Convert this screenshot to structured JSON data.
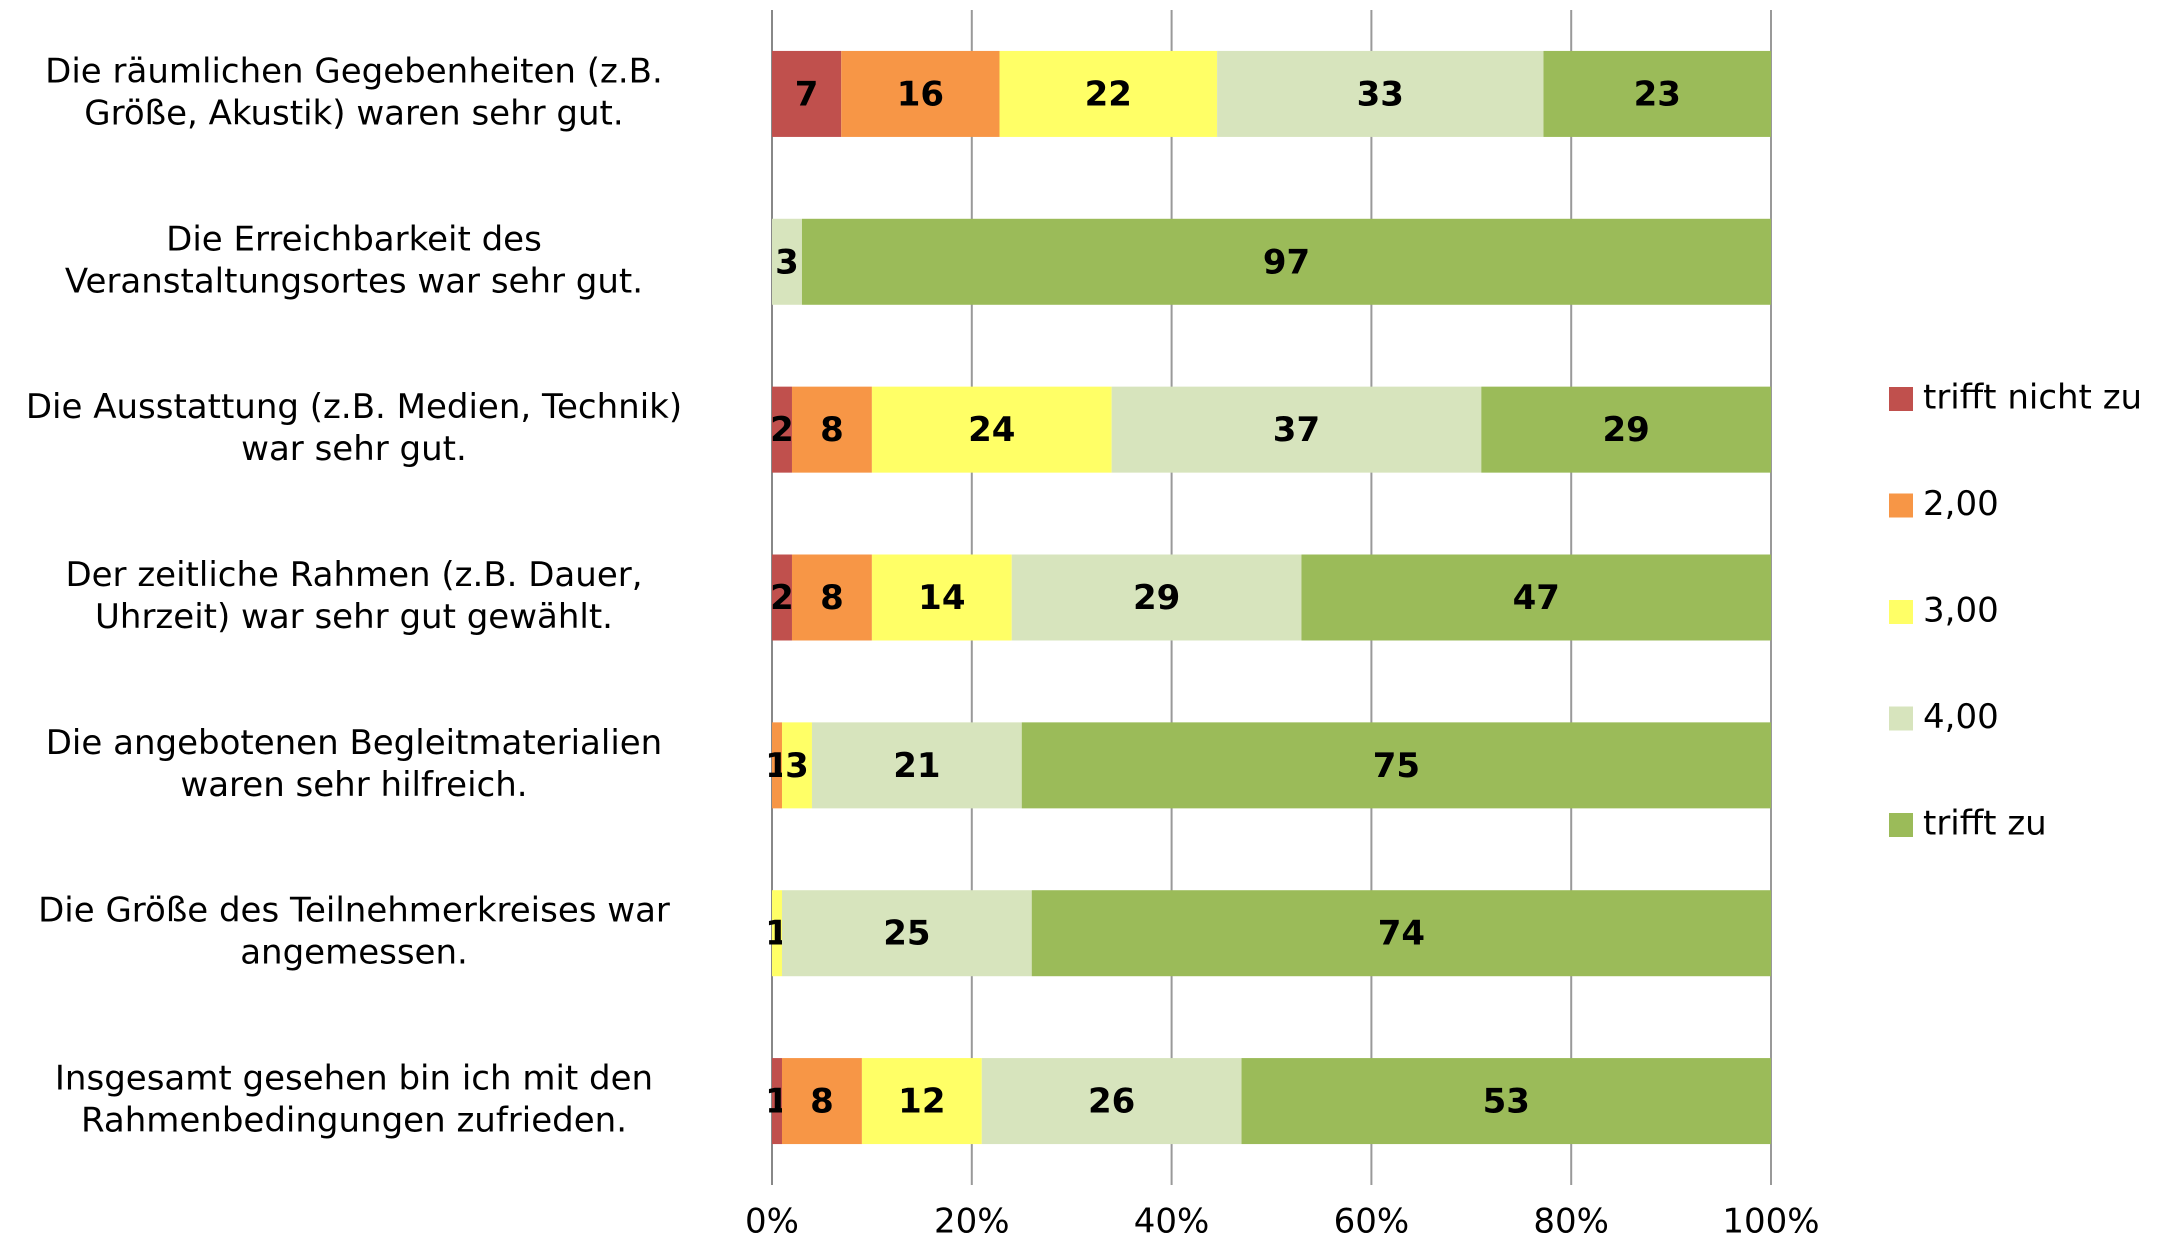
{
  "chart_data": {
    "type": "bar",
    "orientation": "horizontal",
    "stacking": "percent",
    "categories": [
      [
        "Die räumlichen Gegebenheiten (z.B.",
        "Größe, Akustik) waren sehr gut."
      ],
      [
        "Die Erreichbarkeit des",
        "Veranstaltungsortes war sehr gut."
      ],
      [
        "Die Ausstattung (z.B. Medien, Technik)",
        "war sehr gut."
      ],
      [
        "Der zeitliche Rahmen (z.B. Dauer,",
        "Uhrzeit) war sehr gut gewählt."
      ],
      [
        "Die angebotenen Begleitmaterialien",
        "waren sehr hilfreich."
      ],
      [
        "Die Größe des Teilnehmerkreises war",
        "angemessen."
      ],
      [
        "Insgesamt gesehen bin ich mit den",
        "Rahmenbedingungen zufrieden."
      ]
    ],
    "series": [
      {
        "name": "trifft nicht zu",
        "color": "#c0504d",
        "values": [
          7,
          null,
          2,
          2,
          null,
          null,
          1
        ]
      },
      {
        "name": "2,00",
        "color": "#f79646",
        "values": [
          16,
          null,
          8,
          8,
          1,
          null,
          8
        ]
      },
      {
        "name": "3,00",
        "color": "#ffff66",
        "values": [
          22,
          null,
          24,
          14,
          3,
          1,
          12
        ]
      },
      {
        "name": "4,00",
        "color": "#d7e4bd",
        "values": [
          33,
          3,
          37,
          29,
          21,
          25,
          26
        ]
      },
      {
        "name": "trifft zu",
        "color": "#9bbb59",
        "values": [
          23,
          97,
          29,
          47,
          75,
          74,
          53
        ]
      }
    ],
    "xlim": [
      0,
      100
    ],
    "xticks": [
      {
        "value": 0,
        "label": "0%"
      },
      {
        "value": 20,
        "label": "20%"
      },
      {
        "value": 40,
        "label": "40%"
      },
      {
        "value": 60,
        "label": "60%"
      },
      {
        "value": 80,
        "label": "80%"
      },
      {
        "value": 100,
        "label": "100%"
      }
    ],
    "grid": true,
    "legend": "right"
  }
}
